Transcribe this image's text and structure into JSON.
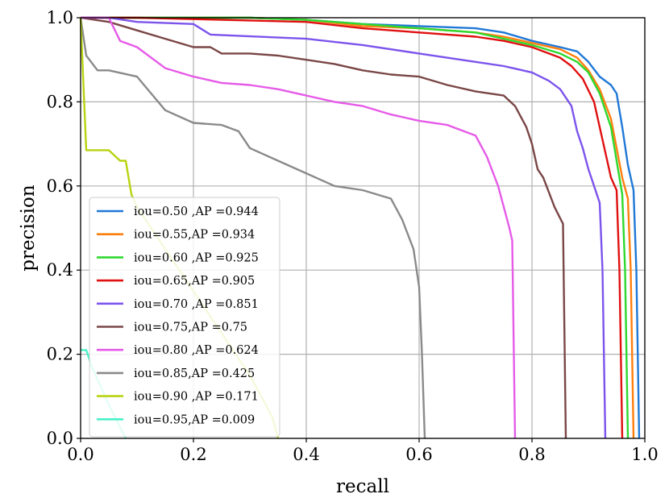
{
  "chart_data": {
    "type": "line",
    "title": "",
    "xlabel": "recall",
    "ylabel": "precision",
    "xlim": [
      0.0,
      1.0
    ],
    "ylim": [
      0.0,
      1.0
    ],
    "xticks": [
      0.0,
      0.2,
      0.4,
      0.6,
      0.8,
      1.0
    ],
    "yticks": [
      0.0,
      0.2,
      0.4,
      0.6,
      0.8,
      1.0
    ],
    "xtick_labels": [
      "0.0",
      "0.2",
      "0.4",
      "0.6",
      "0.8",
      "1.0"
    ],
    "ytick_labels": [
      "0.0",
      "0.2",
      "0.4",
      "0.6",
      "0.8",
      "1.0"
    ],
    "grid": true,
    "legend_position": "lower-left",
    "series": [
      {
        "name": "iou=0.50 ,AP =0.944",
        "color": "#1f78d6",
        "x": [
          0,
          0.05,
          0.3,
          0.4,
          0.5,
          0.6,
          0.7,
          0.75,
          0.8,
          0.85,
          0.88,
          0.9,
          0.92,
          0.94,
          0.95,
          0.96,
          0.97,
          0.98,
          0.985,
          0.99
        ],
        "y": [
          1.0,
          1.0,
          1.0,
          0.995,
          0.985,
          0.98,
          0.975,
          0.965,
          0.945,
          0.93,
          0.92,
          0.895,
          0.86,
          0.84,
          0.82,
          0.74,
          0.65,
          0.59,
          0.4,
          0.0
        ]
      },
      {
        "name": "iou=0.55,AP =0.934",
        "color": "#ff7f0e",
        "x": [
          0,
          0.05,
          0.3,
          0.4,
          0.5,
          0.6,
          0.7,
          0.75,
          0.8,
          0.85,
          0.88,
          0.9,
          0.92,
          0.94,
          0.95,
          0.96,
          0.97,
          0.975,
          0.98
        ],
        "y": [
          1.0,
          1.0,
          1.0,
          0.995,
          0.98,
          0.975,
          0.965,
          0.955,
          0.94,
          0.925,
          0.905,
          0.875,
          0.83,
          0.76,
          0.69,
          0.62,
          0.57,
          0.4,
          0.0
        ]
      },
      {
        "name": "iou=0.60 ,AP =0.925",
        "color": "#2ed82e",
        "x": [
          0,
          0.05,
          0.3,
          0.4,
          0.5,
          0.6,
          0.7,
          0.75,
          0.8,
          0.85,
          0.88,
          0.9,
          0.92,
          0.94,
          0.95,
          0.96,
          0.965,
          0.97
        ],
        "y": [
          1.0,
          1.0,
          1.0,
          0.995,
          0.985,
          0.975,
          0.965,
          0.95,
          0.935,
          0.915,
          0.895,
          0.87,
          0.82,
          0.74,
          0.66,
          0.58,
          0.4,
          0.0
        ]
      },
      {
        "name": "iou=0.65,AP =0.905",
        "color": "#e01010",
        "x": [
          0,
          0.05,
          0.1,
          0.4,
          0.5,
          0.6,
          0.7,
          0.75,
          0.8,
          0.85,
          0.87,
          0.89,
          0.91,
          0.92,
          0.93,
          0.94,
          0.95,
          0.955,
          0.96
        ],
        "y": [
          1.0,
          1.0,
          1.0,
          0.99,
          0.975,
          0.965,
          0.955,
          0.945,
          0.93,
          0.905,
          0.885,
          0.855,
          0.8,
          0.74,
          0.68,
          0.62,
          0.59,
          0.4,
          0.0
        ]
      },
      {
        "name": "iou=0.70 ,AP =0.851",
        "color": "#7c54ec",
        "x": [
          0,
          0.05,
          0.1,
          0.2,
          0.23,
          0.4,
          0.5,
          0.6,
          0.7,
          0.75,
          0.8,
          0.83,
          0.85,
          0.87,
          0.88,
          0.89,
          0.9,
          0.91,
          0.92,
          0.925,
          0.93
        ],
        "y": [
          1.0,
          1.0,
          0.99,
          0.985,
          0.96,
          0.95,
          0.935,
          0.915,
          0.895,
          0.885,
          0.87,
          0.85,
          0.83,
          0.79,
          0.73,
          0.69,
          0.64,
          0.6,
          0.56,
          0.4,
          0.0
        ]
      },
      {
        "name": "iou=0.75,AP =0.75",
        "color": "#7a4646",
        "x": [
          0,
          0.05,
          0.1,
          0.15,
          0.2,
          0.23,
          0.25,
          0.3,
          0.35,
          0.4,
          0.45,
          0.5,
          0.55,
          0.6,
          0.65,
          0.7,
          0.75,
          0.77,
          0.79,
          0.8,
          0.81,
          0.82,
          0.84,
          0.855,
          0.86
        ],
        "y": [
          1.0,
          0.99,
          0.97,
          0.95,
          0.93,
          0.93,
          0.915,
          0.915,
          0.91,
          0.9,
          0.89,
          0.875,
          0.865,
          0.86,
          0.84,
          0.825,
          0.815,
          0.79,
          0.74,
          0.7,
          0.64,
          0.62,
          0.55,
          0.51,
          0.0
        ]
      },
      {
        "name": "iou=0.80 ,AP =0.624",
        "color": "#e65ae8",
        "x": [
          0,
          0.05,
          0.07,
          0.1,
          0.15,
          0.2,
          0.25,
          0.3,
          0.35,
          0.4,
          0.45,
          0.5,
          0.55,
          0.6,
          0.65,
          0.7,
          0.72,
          0.74,
          0.76,
          0.765,
          0.77
        ],
        "y": [
          1.0,
          1.0,
          0.945,
          0.93,
          0.88,
          0.86,
          0.845,
          0.84,
          0.83,
          0.815,
          0.8,
          0.79,
          0.77,
          0.755,
          0.745,
          0.72,
          0.67,
          0.6,
          0.5,
          0.47,
          0.0
        ]
      },
      {
        "name": "iou=0.85,AP =0.425",
        "color": "#8a8a8a",
        "x": [
          0,
          0.01,
          0.03,
          0.05,
          0.1,
          0.15,
          0.2,
          0.25,
          0.28,
          0.3,
          0.35,
          0.4,
          0.45,
          0.5,
          0.55,
          0.57,
          0.59,
          0.6,
          0.605,
          0.61
        ],
        "y": [
          1.0,
          0.91,
          0.875,
          0.875,
          0.86,
          0.78,
          0.75,
          0.745,
          0.73,
          0.69,
          0.66,
          0.63,
          0.6,
          0.59,
          0.57,
          0.52,
          0.45,
          0.36,
          0.2,
          0.0
        ]
      },
      {
        "name": "iou=0.90 ,AP =0.171",
        "color": "#b8d310",
        "x": [
          0,
          0.01,
          0.03,
          0.05,
          0.07,
          0.08,
          0.09,
          0.1,
          0.15,
          0.2,
          0.25,
          0.3,
          0.34,
          0.35
        ],
        "y": [
          1.0,
          0.685,
          0.685,
          0.685,
          0.66,
          0.66,
          0.58,
          0.55,
          0.45,
          0.35,
          0.25,
          0.15,
          0.05,
          0.0
        ]
      },
      {
        "name": "iou=0.95,AP =0.009",
        "color": "#4af0c8",
        "x": [
          0,
          0.01,
          0.02,
          0.05,
          0.08
        ],
        "y": [
          0.21,
          0.21,
          0.17,
          0.08,
          0.0
        ]
      }
    ]
  }
}
